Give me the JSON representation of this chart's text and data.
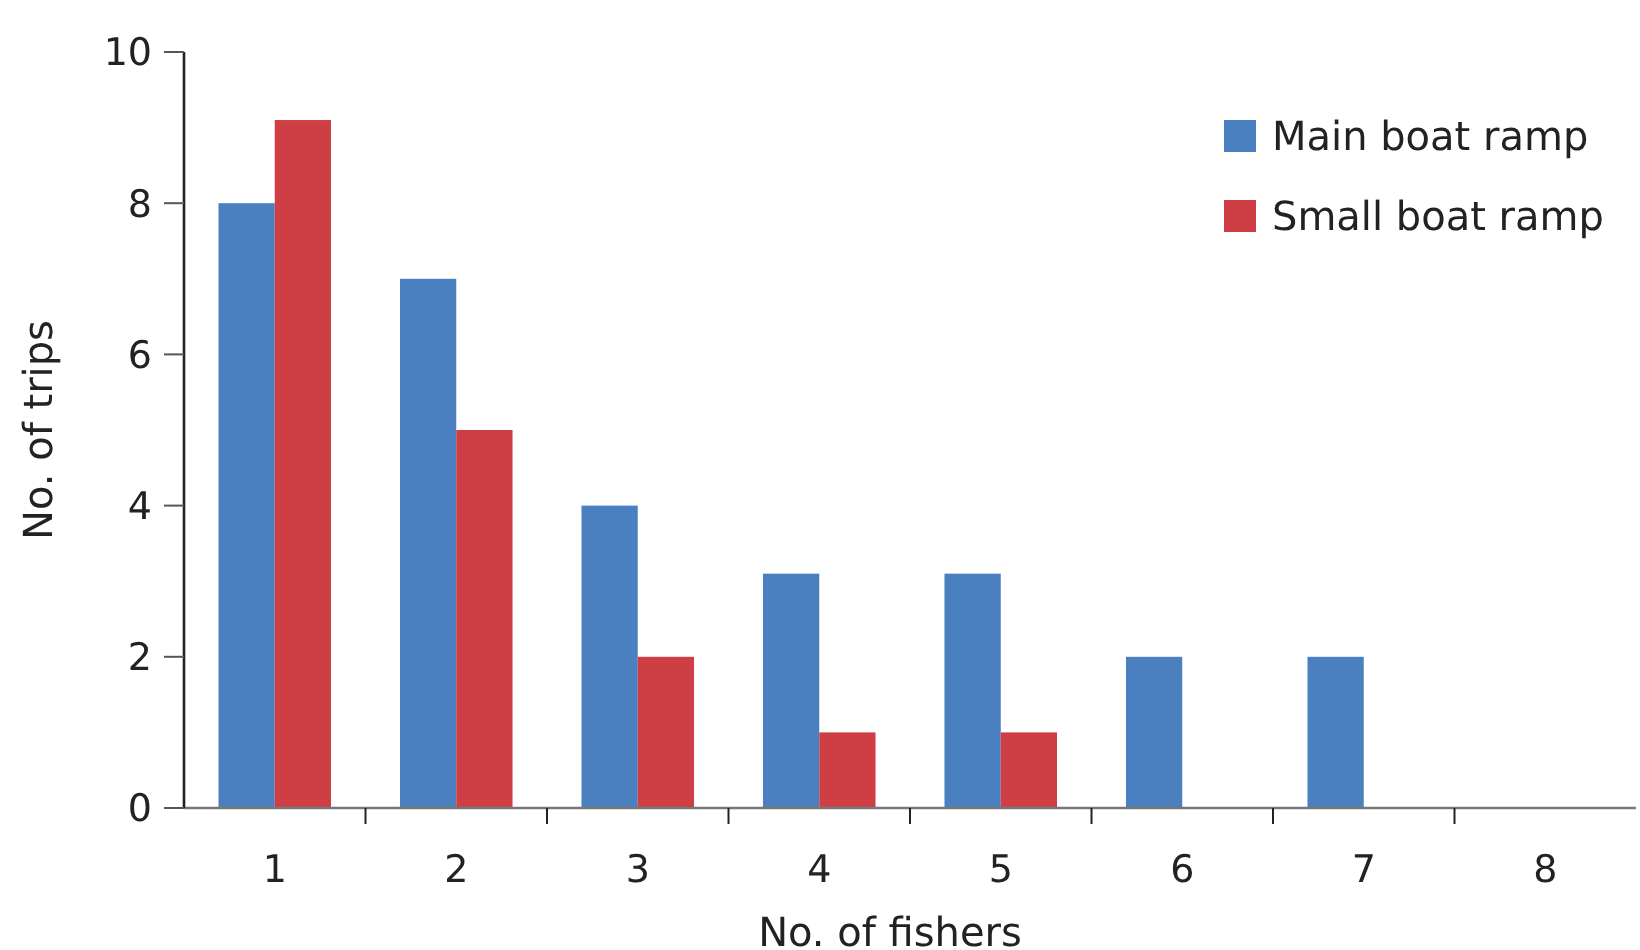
{
  "chart_data": {
    "type": "bar",
    "xlabel": "No. of fishers",
    "ylabel": "No. of trips",
    "categories": [
      "1",
      "2",
      "3",
      "4",
      "5",
      "6",
      "7",
      "8"
    ],
    "series": [
      {
        "name": "Main boat ramp",
        "color": "#4a80c0",
        "values": [
          8,
          7,
          4,
          3.1,
          3.1,
          2,
          2,
          null
        ]
      },
      {
        "name": "Small boat ramp",
        "color": "#cf3d45",
        "values": [
          9.1,
          5,
          2,
          1,
          1,
          null,
          null,
          null
        ]
      }
    ],
    "ylim": [
      0,
      10
    ],
    "yticks": [
      0,
      2,
      4,
      6,
      8,
      10
    ],
    "grid": false,
    "legend": "top right"
  }
}
